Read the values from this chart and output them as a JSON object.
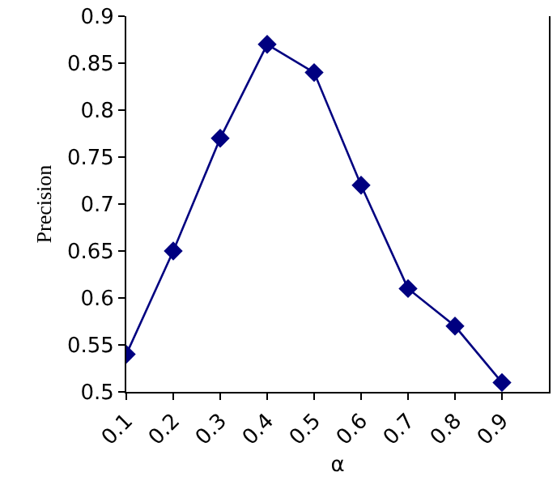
{
  "chart_data": {
    "type": "line",
    "xlabel": "α",
    "ylabel": "Precision",
    "x": [
      0.1,
      0.2,
      0.3,
      0.4,
      0.5,
      0.6,
      0.7,
      0.8,
      0.9
    ],
    "series": [
      {
        "color": "#000080",
        "values": [
          0.54,
          0.65,
          0.77,
          0.87,
          0.84,
          0.72,
          0.61,
          0.57,
          0.51
        ]
      }
    ],
    "xlim": [
      0.1,
      1.0
    ],
    "xticks": [
      0.1,
      0.2,
      0.3,
      0.4,
      0.5,
      0.6,
      0.7,
      0.8,
      0.9
    ],
    "ylim": [
      0.5,
      0.9
    ],
    "yticks": [
      0.5,
      0.55,
      0.6,
      0.65,
      0.7,
      0.75,
      0.8,
      0.85,
      0.9
    ],
    "legend": false,
    "marker": "diamond",
    "line_style": "solid"
  }
}
